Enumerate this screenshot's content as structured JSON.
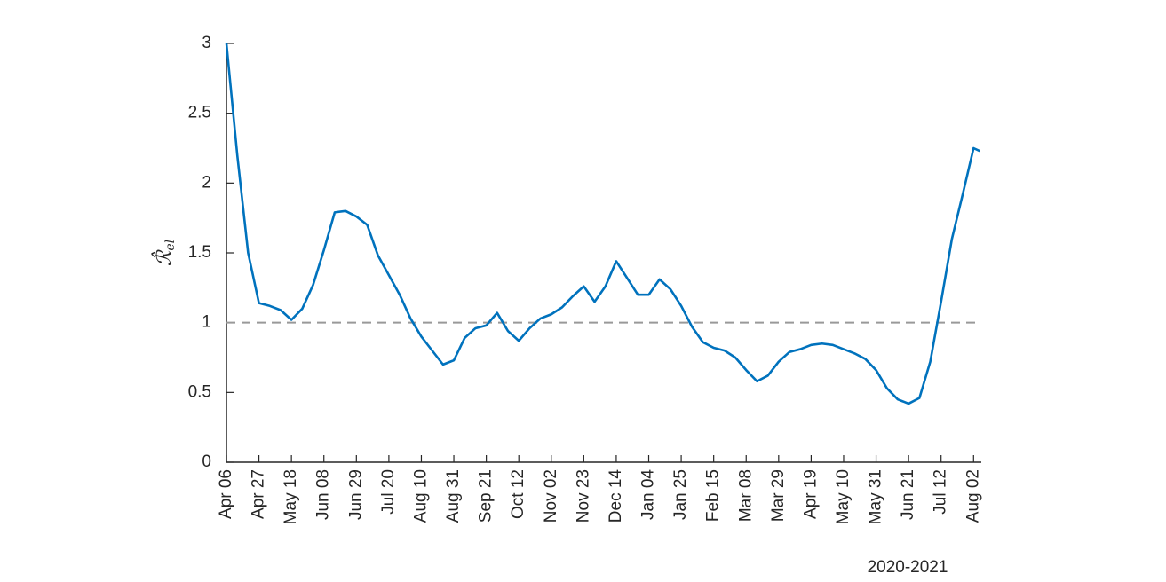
{
  "chart_data": {
    "type": "line",
    "ylabel": "ℛ̂",
    "ylabel_sub": "el",
    "xlabel": "2020-2021",
    "x": [
      "2020-04-06",
      "2020-04-13",
      "2020-04-20",
      "2020-04-27",
      "2020-05-04",
      "2020-05-11",
      "2020-05-18",
      "2020-05-25",
      "2020-06-01",
      "2020-06-08",
      "2020-06-15",
      "2020-06-22",
      "2020-06-29",
      "2020-07-06",
      "2020-07-13",
      "2020-07-20",
      "2020-07-27",
      "2020-08-03",
      "2020-08-10",
      "2020-08-17",
      "2020-08-24",
      "2020-08-31",
      "2020-09-07",
      "2020-09-14",
      "2020-09-21",
      "2020-09-28",
      "2020-10-05",
      "2020-10-12",
      "2020-10-19",
      "2020-10-26",
      "2020-11-02",
      "2020-11-09",
      "2020-11-16",
      "2020-11-23",
      "2020-11-30",
      "2020-12-07",
      "2020-12-14",
      "2020-12-21",
      "2020-12-28",
      "2021-01-04",
      "2021-01-11",
      "2021-01-18",
      "2021-01-25",
      "2021-02-01",
      "2021-02-08",
      "2021-02-15",
      "2021-02-22",
      "2021-03-01",
      "2021-03-08",
      "2021-03-15",
      "2021-03-22",
      "2021-03-29",
      "2021-04-05",
      "2021-04-12",
      "2021-04-19",
      "2021-04-26",
      "2021-05-03",
      "2021-05-10",
      "2021-05-17",
      "2021-05-24",
      "2021-05-31",
      "2021-06-07",
      "2021-06-14",
      "2021-06-21",
      "2021-06-28",
      "2021-07-05",
      "2021-07-12",
      "2021-07-19",
      "2021-07-26",
      "2021-08-02",
      "2021-08-06"
    ],
    "series": [
      {
        "color": "#0072bd",
        "values": [
          3.0,
          2.2,
          1.5,
          1.14,
          1.12,
          1.09,
          1.02,
          1.1,
          1.27,
          1.52,
          1.79,
          1.8,
          1.76,
          1.7,
          1.48,
          1.34,
          1.2,
          1.03,
          0.9,
          0.8,
          0.7,
          0.73,
          0.89,
          0.96,
          0.98,
          1.07,
          0.94,
          0.87,
          0.96,
          1.03,
          1.06,
          1.11,
          1.19,
          1.26,
          1.15,
          1.26,
          1.44,
          1.32,
          1.2,
          1.2,
          1.31,
          1.24,
          1.12,
          0.97,
          0.86,
          0.82,
          0.8,
          0.75,
          0.66,
          0.58,
          0.62,
          0.72,
          0.79,
          0.81,
          0.84,
          0.85,
          0.84,
          0.81,
          0.78,
          0.74,
          0.66,
          0.53,
          0.45,
          0.42,
          0.46,
          0.72,
          1.15,
          1.6,
          1.92,
          2.25,
          2.23
        ]
      }
    ],
    "hline": 1,
    "hline_color": "#999999",
    "xlim": [
      "2020-04-06",
      "2021-08-07"
    ],
    "xticks": [
      {
        "value": "2020-04-06",
        "label": "Apr 06"
      },
      {
        "value": "2020-04-27",
        "label": "Apr 27"
      },
      {
        "value": "2020-05-18",
        "label": "May 18"
      },
      {
        "value": "2020-06-08",
        "label": "Jun 08"
      },
      {
        "value": "2020-06-29",
        "label": "Jun 29"
      },
      {
        "value": "2020-07-20",
        "label": "Jul 20"
      },
      {
        "value": "2020-08-10",
        "label": "Aug 10"
      },
      {
        "value": "2020-08-31",
        "label": "Aug 31"
      },
      {
        "value": "2020-09-21",
        "label": "Sep 21"
      },
      {
        "value": "2020-10-12",
        "label": "Oct 12"
      },
      {
        "value": "2020-11-02",
        "label": "Nov 02"
      },
      {
        "value": "2020-11-23",
        "label": "Nov 23"
      },
      {
        "value": "2020-12-14",
        "label": "Dec 14"
      },
      {
        "value": "2021-01-04",
        "label": "Jan 04"
      },
      {
        "value": "2021-01-25",
        "label": "Jan 25"
      },
      {
        "value": "2021-02-15",
        "label": "Feb 15"
      },
      {
        "value": "2021-03-08",
        "label": "Mar 08"
      },
      {
        "value": "2021-03-29",
        "label": "Mar 29"
      },
      {
        "value": "2021-04-19",
        "label": "Apr 19"
      },
      {
        "value": "2021-05-10",
        "label": "May 10"
      },
      {
        "value": "2021-05-31",
        "label": "May 31"
      },
      {
        "value": "2021-06-21",
        "label": "Jun 21"
      },
      {
        "value": "2021-07-12",
        "label": "Jul 12"
      },
      {
        "value": "2021-08-02",
        "label": "Aug 02"
      }
    ],
    "ylim": [
      0,
      3
    ],
    "yticks": [
      0,
      0.5,
      1,
      1.5,
      2,
      2.5,
      3
    ]
  }
}
